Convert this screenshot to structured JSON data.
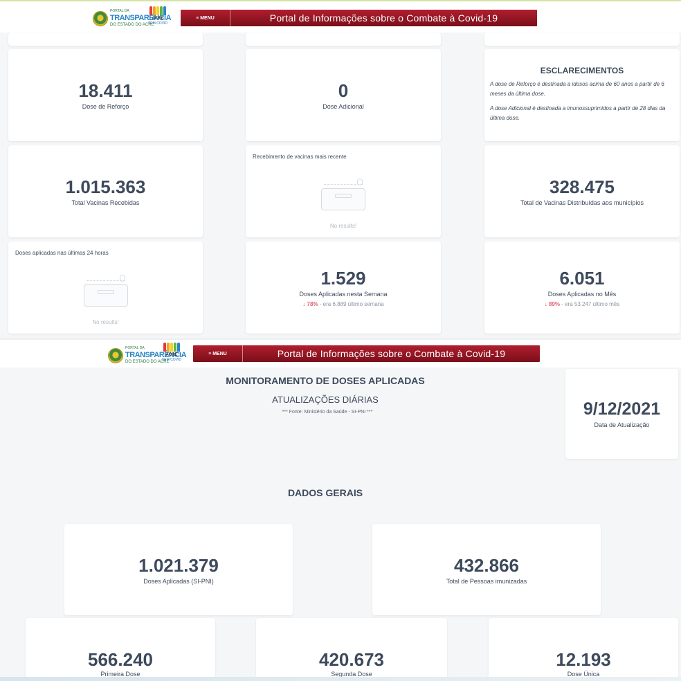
{
  "header": {
    "logo_small": "PORTAL DA",
    "logo_main": "TRANSPARÊNCIA",
    "logo_sub": "DO ESTADO DO ACRE",
    "acre_line1": "ACRE",
    "acre_line2": "SEM COVID",
    "menu_label": "≡ MENU",
    "title": "Portal de Informações sobre o Combate à Covid-19"
  },
  "top": {
    "dose_reforco": {
      "value": "18.411",
      "label": "Dose de Reforço"
    },
    "dose_adicional": {
      "value": "0",
      "label": "Dose Adicional"
    },
    "esclarecimentos": {
      "title": "ESCLARECIMENTOS",
      "p1": "A dose de Reforço é destinada a idosos acima de 60 anos a partir de 6 meses da última dose.",
      "p2": "A dose Adicional é destinada a imunossuprimidos a partir de 28 dias da última dose."
    },
    "total_recebidas": {
      "value": "1.015.363",
      "label": "Total Vacinas Recebidas"
    },
    "recebimento": {
      "title": "Recebimento de vacinas mais recente",
      "empty": "No results!"
    },
    "distribuidas": {
      "value": "328.475",
      "label": "Total de Vacinas Distribuídas aos municípios"
    },
    "ultimas24": {
      "title": "Doses aplicadas nas últimas 24 horas",
      "empty": "No results!"
    },
    "semana": {
      "value": "1.529",
      "label": "Doses Aplicadas nesta Semana",
      "arrow": "↓",
      "pct": "78%",
      "prev": "- era 6.889 último semana"
    },
    "mes": {
      "value": "6.051",
      "label": "Doses Aplicadas no Mês",
      "arrow": "↓",
      "pct": "89%",
      "prev": "- era 53.247 último mês"
    }
  },
  "bottom": {
    "title": "MONITORAMENTO DE DOSES APLICADAS",
    "subtitle": "ATUALIZAÇÕES DIÁRIAS",
    "source": "*** Fonte: Ministério da Saúde - SI-PNI ***",
    "update": {
      "value": "9/12/2021",
      "label": "Data de Atualização"
    },
    "dados_gerais": "DADOS GERAIS",
    "doses_aplicadas": {
      "value": "1.021.379",
      "label": "Doses Aplicadas (SI-PNI)"
    },
    "pessoas_imunizadas": {
      "value": "432.866",
      "label": "Total de Pessoas imunizadas"
    },
    "primeira": {
      "value": "566.240",
      "label": "Primeira Dose"
    },
    "segunda": {
      "value": "420.673",
      "label": "Segunda Dose"
    },
    "unica": {
      "value": "12.193",
      "label": "Dose Única"
    }
  },
  "colors": {
    "banner": "#9a1424",
    "text": "#3d4a5c",
    "trend_down": "#e06070"
  }
}
